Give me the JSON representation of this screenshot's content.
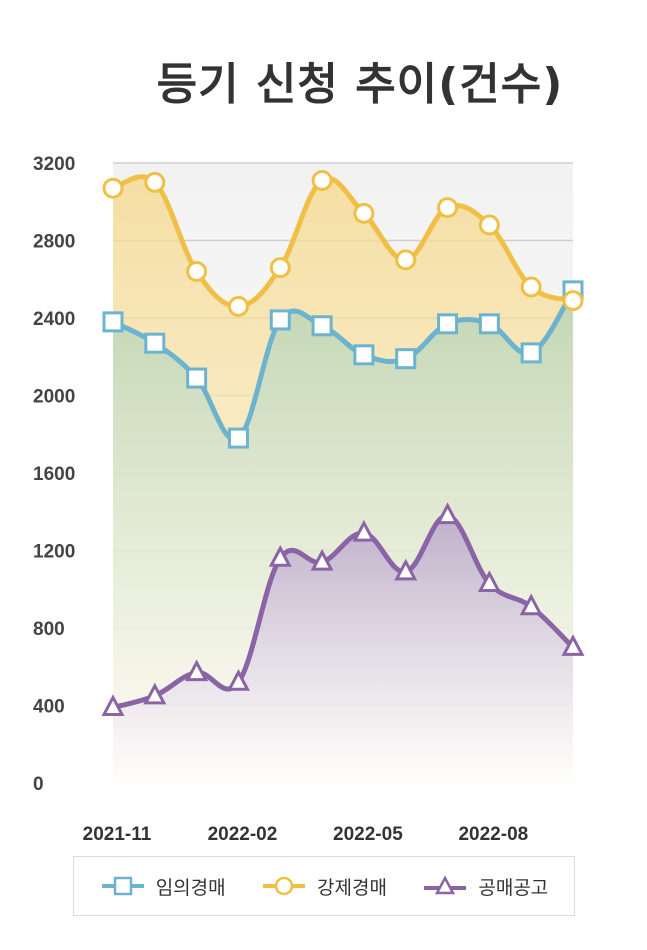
{
  "chart_data": {
    "type": "line",
    "title": "등기 신청 추이(건수)",
    "x": [
      "2021-11",
      "2021-12",
      "2022-01",
      "2022-02",
      "2022-03",
      "2022-04",
      "2022-05",
      "2022-06",
      "2022-07",
      "2022-08",
      "2022-09",
      "2022-10"
    ],
    "x_tick_labels": [
      "2021-11",
      "2022-02",
      "2022-05",
      "2022-08"
    ],
    "ylim": [
      0,
      3200
    ],
    "y_ticks": [
      0,
      400,
      800,
      1200,
      1600,
      2000,
      2400,
      2800,
      3200
    ],
    "grid": true,
    "legend_position": "bottom",
    "series": [
      {
        "name": "임의경매",
        "marker": "square",
        "color": "#6bb3cf",
        "values": [
          2380,
          2270,
          2090,
          1780,
          2390,
          2360,
          2210,
          2190,
          2370,
          2370,
          2220,
          2540
        ]
      },
      {
        "name": "강제경매",
        "marker": "circle",
        "color": "#f0bf45",
        "values": [
          3070,
          3100,
          2640,
          2460,
          2660,
          3110,
          2940,
          2700,
          2970,
          2880,
          2560,
          2490
        ]
      },
      {
        "name": "공매공고",
        "marker": "triangle",
        "color": "#8a64a5",
        "values": [
          390,
          450,
          570,
          520,
          1160,
          1140,
          1290,
          1090,
          1380,
          1030,
          910,
          700
        ]
      }
    ]
  }
}
